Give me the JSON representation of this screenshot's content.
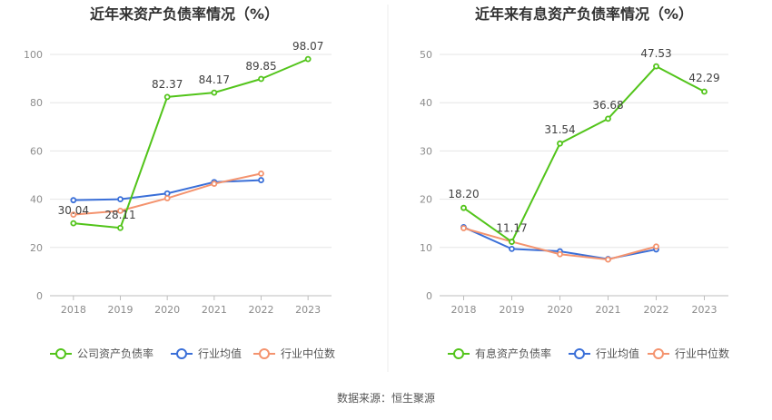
{
  "footer": {
    "source": "数据来源：恒生聚源"
  },
  "colors": {
    "green": "#52c41a",
    "blue": "#3a6fd8",
    "orange": "#f4936e",
    "grid": "#e6e6e6",
    "axis": "#bdbdbd",
    "tick": "#8c8c8c",
    "title": "#333333",
    "divider": "#eeeeee"
  },
  "chart_data": [
    {
      "type": "line",
      "title": "近年来资产负债率情况（%）",
      "categories": [
        "2018",
        "2019",
        "2020",
        "2021",
        "2022",
        "2023"
      ],
      "ylim": [
        0,
        100
      ],
      "yticks": [
        0,
        20,
        40,
        60,
        80,
        100
      ],
      "legend_position": "bottom",
      "series": [
        {
          "name": "公司资产负债率",
          "color": "#52c41a",
          "values": [
            30.04,
            28.11,
            82.37,
            84.17,
            89.85,
            98.07
          ],
          "labels": [
            "30.04",
            "28.11",
            "82.37",
            "84.17",
            "89.85",
            "98.07"
          ]
        },
        {
          "name": "行业均值",
          "color": "#3a6fd8",
          "values": [
            39.6,
            40.0,
            42.4,
            47.1,
            47.9,
            null
          ]
        },
        {
          "name": "行业中位数",
          "color": "#f4936e",
          "values": [
            33.6,
            35.2,
            40.4,
            46.4,
            50.6,
            null
          ]
        }
      ]
    },
    {
      "type": "line",
      "title": "近年来有息资产负债率情况（%）",
      "categories": [
        "2018",
        "2019",
        "2020",
        "2021",
        "2022",
        "2023"
      ],
      "ylim": [
        0,
        50
      ],
      "yticks": [
        0,
        10,
        20,
        30,
        40,
        50
      ],
      "legend_position": "bottom",
      "series": [
        {
          "name": "有息资产负债率",
          "color": "#52c41a",
          "values": [
            18.2,
            11.17,
            31.54,
            36.68,
            47.53,
            42.29
          ],
          "labels": [
            "18.20",
            "11.17",
            "31.54",
            "36.68",
            "47.53",
            "42.29"
          ]
        },
        {
          "name": "行业均值",
          "color": "#3a6fd8",
          "values": [
            14.2,
            9.7,
            9.2,
            7.6,
            9.6,
            null
          ]
        },
        {
          "name": "行业中位数",
          "color": "#f4936e",
          "values": [
            14.0,
            11.2,
            8.6,
            7.5,
            10.2,
            null
          ]
        }
      ]
    }
  ]
}
